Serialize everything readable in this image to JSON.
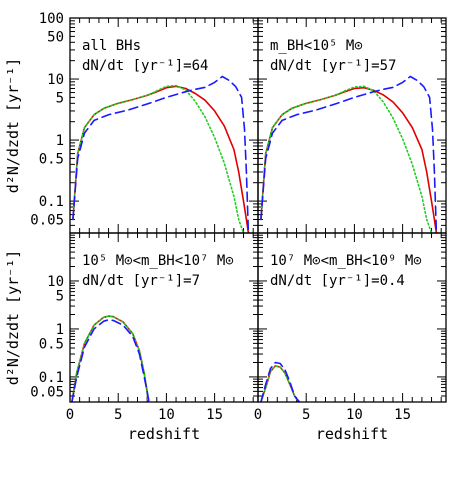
{
  "chart_data": {
    "type": "line",
    "xlabel": "redshift",
    "ylabel": "d²N/dzdt [yr⁻¹]",
    "x_tick_labels": [
      "0",
      "5",
      "10",
      "15"
    ],
    "y_tick_labels": [
      "100",
      "50",
      "10",
      "5",
      "1",
      "0.5",
      "0.1",
      "0.05"
    ],
    "y_tick_values": [
      100,
      50,
      10,
      5,
      1,
      0.5,
      0.1,
      0.05
    ],
    "xlim": [
      0,
      19.5
    ],
    "ylim": [
      0.03,
      100
    ],
    "yscale": "log",
    "series_colors": [
      "#e00000",
      "#22cc22",
      "#1a1aff"
    ],
    "series_styles": [
      "solid",
      "dotted",
      "dashed"
    ],
    "panels": [
      {
        "label1": "all BHs",
        "label2": "dN/dt [yr⁻¹]=64",
        "series": [
          {
            "x": [
              0.3,
              0.8,
              1.5,
              2.5,
              3.5,
              5,
              6.5,
              8,
              9,
              10,
              11,
              12,
              13,
              14,
              15,
              16,
              17,
              17.5,
              18,
              18.3,
              18.5
            ],
            "y": [
              0.05,
              0.6,
              1.6,
              2.6,
              3.3,
              4,
              4.6,
              5.4,
              6.2,
              7.2,
              7.6,
              7,
              5.8,
              4.5,
              3,
              1.7,
              0.7,
              0.3,
              0.1,
              0.05,
              0.03
            ]
          },
          {
            "x": [
              0.3,
              0.8,
              1.5,
              2.5,
              3.5,
              5,
              6.5,
              8,
              9,
              10,
              11,
              12,
              13,
              14,
              15,
              16,
              17,
              17.5,
              18
            ],
            "y": [
              0.05,
              0.6,
              1.6,
              2.6,
              3.3,
              4,
              4.6,
              5.4,
              6.4,
              7.6,
              7.8,
              6.6,
              4.3,
              2.4,
              1.1,
              0.42,
              0.12,
              0.05,
              0.03
            ]
          },
          {
            "x": [
              0.3,
              0.8,
              1.5,
              2.5,
              4,
              6,
              8,
              10,
              12,
              13,
              14,
              15,
              15.8,
              16.5,
              17.2,
              17.8,
              18.1,
              18.3,
              18.5
            ],
            "y": [
              0.05,
              0.5,
              1.3,
              2.1,
              2.6,
              3.1,
              3.9,
              5,
              6.2,
              6.8,
              7.3,
              8.8,
              11,
              9.5,
              7.5,
              5,
              1.5,
              0.3,
              0.03
            ]
          }
        ]
      },
      {
        "label1": "m_BH<10⁵ M⊙",
        "label2": "dN/dt [yr⁻¹]=57",
        "series": [
          {
            "x": [
              0.3,
              0.8,
              1.5,
              2.5,
              3.5,
              5,
              6.5,
              8,
              9,
              10,
              11,
              12,
              13,
              14,
              15,
              16,
              17,
              17.5,
              18,
              18.3,
              18.5
            ],
            "y": [
              0.05,
              0.6,
              1.6,
              2.6,
              3.3,
              4,
              4.6,
              5.4,
              6.2,
              7,
              7.2,
              6.5,
              5.5,
              4.2,
              2.8,
              1.6,
              0.7,
              0.3,
              0.1,
              0.05,
              0.03
            ]
          },
          {
            "x": [
              0.3,
              0.8,
              1.5,
              2.5,
              3.5,
              5,
              6.5,
              8,
              9,
              10,
              11,
              12,
              13,
              14,
              15,
              16,
              17,
              17.5,
              18
            ],
            "y": [
              0.05,
              0.6,
              1.6,
              2.6,
              3.3,
              4,
              4.6,
              5.4,
              6.4,
              7.4,
              7.6,
              6.4,
              4.2,
              2.3,
              1.05,
              0.4,
              0.12,
              0.05,
              0.03
            ]
          },
          {
            "x": [
              0.3,
              0.8,
              1.5,
              2.5,
              4,
              6,
              8,
              10,
              12,
              13,
              14,
              15,
              15.8,
              16.5,
              17.2,
              17.8,
              18.1,
              18.3,
              18.5
            ],
            "y": [
              0.05,
              0.5,
              1.3,
              2.1,
              2.6,
              3.1,
              3.9,
              5,
              6.2,
              6.8,
              7.3,
              8.8,
              11,
              9.5,
              7.5,
              5,
              1.5,
              0.3,
              0.03
            ]
          }
        ]
      },
      {
        "label1": "10⁵ M⊙<m_BH<10⁷ M⊙",
        "label2": "dN/dt [yr⁻¹]=7",
        "series": [
          {
            "x": [
              0.2,
              0.7,
              1.5,
              2.5,
              3.5,
              4,
              4.5,
              5.5,
              6.5,
              7.2,
              7.7,
              8,
              8.1
            ],
            "y": [
              0.03,
              0.12,
              0.5,
              1.2,
              1.75,
              1.85,
              1.8,
              1.4,
              0.8,
              0.35,
              0.12,
              0.05,
              0.03
            ]
          },
          {
            "x": [
              0.2,
              0.7,
              1.5,
              2.5,
              3.5,
              4,
              4.5,
              5.5,
              6.5,
              7.2,
              7.7,
              8,
              8.1
            ],
            "y": [
              0.03,
              0.12,
              0.5,
              1.2,
              1.75,
              1.85,
              1.8,
              1.4,
              0.8,
              0.35,
              0.12,
              0.05,
              0.03
            ]
          },
          {
            "x": [
              0.2,
              0.7,
              1.5,
              2.5,
              3.5,
              4,
              4.5,
              5.5,
              6.5,
              7.2,
              7.7,
              8,
              8.2
            ],
            "y": [
              0.03,
              0.1,
              0.42,
              1.0,
              1.45,
              1.55,
              1.5,
              1.2,
              0.7,
              0.3,
              0.1,
              0.05,
              0.03
            ]
          }
        ]
      },
      {
        "label1": "10⁷ M⊙<m_BH<10⁹ M⊙",
        "label2": "dN/dt [yr⁻¹]=0.4",
        "series": [
          {
            "x": [
              0.3,
              0.8,
              1.3,
              1.8,
              2.3,
              2.8,
              3.3,
              3.8,
              4.2
            ],
            "y": [
              0.03,
              0.06,
              0.13,
              0.17,
              0.16,
              0.12,
              0.07,
              0.04,
              0.03
            ]
          },
          {
            "x": [
              0.3,
              0.8,
              1.3,
              1.8,
              2.3,
              2.8,
              3.3,
              3.8,
              4.2
            ],
            "y": [
              0.03,
              0.06,
              0.13,
              0.17,
              0.16,
              0.12,
              0.07,
              0.04,
              0.03
            ]
          },
          {
            "x": [
              0.3,
              0.8,
              1.3,
              1.8,
              2.3,
              2.8,
              3.3,
              3.8,
              4.3
            ],
            "y": [
              0.03,
              0.07,
              0.15,
              0.2,
              0.19,
              0.14,
              0.08,
              0.04,
              0.03
            ]
          }
        ]
      }
    ]
  }
}
